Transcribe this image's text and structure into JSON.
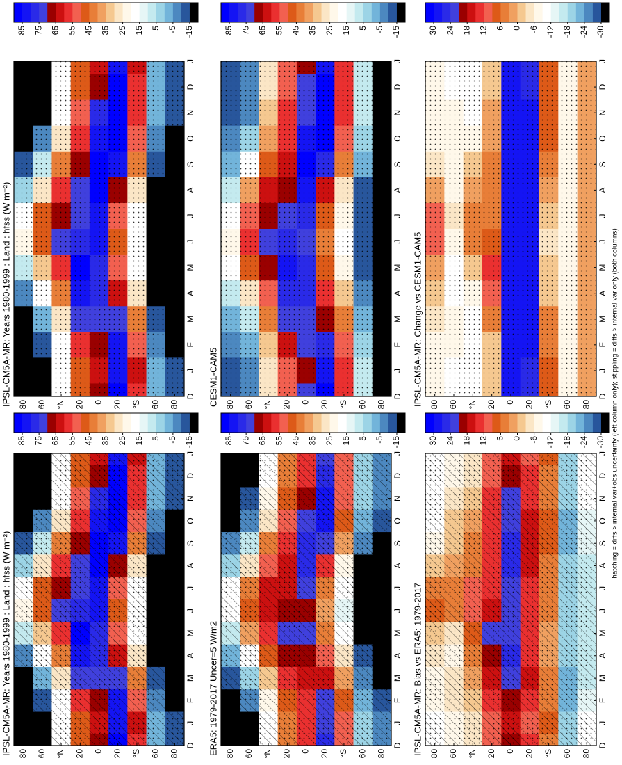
{
  "colormap": [
    "#0000ff",
    "#1414f4",
    "#2a2ae8",
    "#4040dd",
    "#9a0000",
    "#cc1010",
    "#ea3030",
    "#f26050",
    "#dd5a18",
    "#e87e38",
    "#f0a060",
    "#f5c890",
    "#fbe6c6",
    "#fff8ea",
    "#ffffff",
    "#e6f6f6",
    "#c4eaef",
    "#9cd4e6",
    "#72b4da",
    "#4c88c0",
    "#28569c",
    "#000000"
  ],
  "footnote": "hatching = diffs > internal var+obs uncertainty (left column only); stippling = diffs > internal var only (both columns)",
  "chart_data": [
    {
      "type": "heatmap",
      "title": "IPSL-CM5A-MR: Years 1980-1999 : Land : hfss (W m⁻²)",
      "hatching": true,
      "stippling": true,
      "categories": [
        "D",
        "J",
        "F",
        "M",
        "A",
        "M",
        "J",
        "J",
        "A",
        "S",
        "O",
        "N",
        "D",
        "J"
      ],
      "y_categories": [
        "80",
        "60",
        "°N",
        "20",
        "0",
        "20",
        "°S",
        "60",
        "80"
      ],
      "colorbar": {
        "lim": [
          90,
          -20
        ],
        "ticks": [
          85,
          75,
          65,
          55,
          45,
          35,
          25,
          15,
          5,
          -5,
          -15
        ]
      },
      "values": [
        [
          -25,
          -25,
          -22,
          -15,
          -5,
          10,
          25,
          20,
          5,
          -10,
          -20,
          -25,
          -25,
          -25
        ],
        [
          -20,
          -20,
          -10,
          0,
          15,
          35,
          50,
          48,
          30,
          10,
          -5,
          -15,
          -20,
          -20
        ],
        [
          15,
          15,
          20,
          30,
          45,
          60,
          72,
          70,
          60,
          45,
          30,
          20,
          15,
          15
        ],
        [
          50,
          50,
          60,
          75,
          85,
          90,
          80,
          75,
          72,
          68,
          60,
          55,
          50,
          50
        ],
        [
          70,
          65,
          70,
          75,
          80,
          80,
          82,
          85,
          90,
          90,
          85,
          78,
          70,
          65
        ],
        [
          90,
          85,
          82,
          75,
          65,
          55,
          50,
          55,
          70,
          85,
          95,
          95,
          90,
          85
        ],
        [
          60,
          62,
          55,
          45,
          30,
          20,
          15,
          18,
          30,
          45,
          55,
          60,
          60,
          62
        ],
        [
          0,
          0,
          -5,
          -10,
          -15,
          -20,
          -25,
          -25,
          -20,
          -10,
          -5,
          0,
          0,
          0
        ],
        [
          -10,
          -10,
          -15,
          -20,
          -25,
          -25,
          -25,
          -25,
          -25,
          -20,
          -15,
          -10,
          -10,
          -10
        ]
      ]
    },
    {
      "type": "heatmap",
      "title": "IPSL-CM5A-MR: Years 1980-1999 : Land : hfss (W m⁻²)",
      "hatching": false,
      "stippling": true,
      "categories": [
        "D",
        "J",
        "F",
        "M",
        "A",
        "M",
        "J",
        "J",
        "A",
        "S",
        "O",
        "N",
        "D",
        "J"
      ],
      "y_categories": [
        "80",
        "60",
        "°N",
        "20",
        "0",
        "20",
        "°S",
        "60",
        "80"
      ],
      "colorbar": {
        "lim": [
          90,
          -20
        ],
        "ticks": [
          85,
          75,
          65,
          55,
          45,
          35,
          25,
          15,
          5,
          -5,
          -15
        ]
      },
      "values": [
        [
          -25,
          -25,
          -22,
          -15,
          -5,
          10,
          25,
          20,
          5,
          -10,
          -20,
          -25,
          -25,
          -25
        ],
        [
          -20,
          -20,
          -10,
          0,
          15,
          35,
          50,
          48,
          30,
          10,
          -5,
          -15,
          -20,
          -20
        ],
        [
          15,
          15,
          20,
          30,
          45,
          60,
          72,
          70,
          60,
          45,
          30,
          20,
          15,
          15
        ],
        [
          50,
          50,
          60,
          75,
          85,
          90,
          80,
          75,
          72,
          68,
          60,
          55,
          50,
          50
        ],
        [
          70,
          65,
          70,
          75,
          80,
          80,
          82,
          85,
          90,
          90,
          85,
          78,
          70,
          65
        ],
        [
          90,
          85,
          82,
          75,
          65,
          55,
          50,
          55,
          70,
          85,
          95,
          95,
          90,
          85
        ],
        [
          60,
          62,
          55,
          45,
          30,
          20,
          15,
          18,
          30,
          45,
          55,
          60,
          60,
          62
        ],
        [
          0,
          0,
          -5,
          -10,
          -15,
          -20,
          -25,
          -25,
          -20,
          -10,
          -5,
          0,
          0,
          0
        ],
        [
          -10,
          -10,
          -15,
          -20,
          -25,
          -25,
          -25,
          -25,
          -25,
          -20,
          -15,
          -10,
          -10,
          -10
        ]
      ]
    },
    {
      "type": "heatmap",
      "title": "ERA5: 1979-2017 Uncer=5 W/m2",
      "hatching": true,
      "stippling": true,
      "categories": [
        "D",
        "J",
        "F",
        "M",
        "A",
        "M",
        "J",
        "J",
        "A",
        "S",
        "O",
        "N",
        "D",
        "J"
      ],
      "y_categories": [
        "80",
        "60",
        "°N",
        "20",
        "0",
        "20",
        "°S",
        "60",
        "80"
      ],
      "colorbar": {
        "lim": [
          90,
          -20
        ],
        "ticks": [
          85,
          75,
          65,
          55,
          45,
          35,
          25,
          15,
          5,
          -5,
          -15
        ]
      },
      "values": [
        [
          -20,
          -20,
          -18,
          -10,
          0,
          10,
          20,
          18,
          5,
          -5,
          -15,
          -20,
          -20,
          -20
        ],
        [
          -15,
          -15,
          -8,
          5,
          20,
          38,
          48,
          45,
          30,
          10,
          -5,
          -12,
          -15,
          -15
        ],
        [
          20,
          20,
          25,
          35,
          48,
          58,
          65,
          62,
          55,
          42,
          30,
          22,
          20,
          20
        ],
        [
          45,
          45,
          50,
          60,
          70,
          75,
          70,
          65,
          62,
          58,
          52,
          48,
          45,
          45
        ],
        [
          60,
          58,
          60,
          65,
          70,
          72,
          70,
          72,
          78,
          80,
          75,
          68,
          60,
          58
        ],
        [
          80,
          75,
          72,
          65,
          55,
          45,
          40,
          45,
          60,
          75,
          85,
          85,
          80,
          75
        ],
        [
          55,
          55,
          50,
          40,
          28,
          18,
          12,
          15,
          25,
          38,
          48,
          55,
          55,
          55
        ],
        [
          5,
          5,
          0,
          -5,
          -10,
          -15,
          -20,
          -20,
          -15,
          -5,
          0,
          5,
          5,
          5
        ],
        [
          -5,
          -5,
          -10,
          -15,
          -20,
          -20,
          -20,
          -20,
          -20,
          -15,
          -10,
          -5,
          -5,
          -5
        ]
      ]
    },
    {
      "type": "heatmap",
      "title": "CESM1-CAM5",
      "hatching": false,
      "stippling": true,
      "categories": [
        "D",
        "J",
        "F",
        "M",
        "A",
        "M",
        "J",
        "J",
        "A",
        "S",
        "O",
        "N",
        "D",
        "J"
      ],
      "y_categories": [
        "80",
        "60",
        "°N",
        "20",
        "0",
        "20",
        "°S",
        "60",
        "80"
      ],
      "colorbar": {
        "lim": [
          90,
          -20
        ],
        "ticks": [
          85,
          75,
          65,
          55,
          45,
          35,
          25,
          15,
          5,
          -5,
          -15
        ]
      },
      "values": [
        [
          -10,
          -10,
          -8,
          0,
          10,
          18,
          25,
          20,
          10,
          0,
          -5,
          -10,
          -10,
          -10
        ],
        [
          -5,
          -5,
          0,
          10,
          30,
          48,
          60,
          55,
          40,
          20,
          5,
          -5,
          -5,
          -5
        ],
        [
          30,
          30,
          35,
          45,
          55,
          70,
          75,
          70,
          62,
          50,
          38,
          32,
          30,
          30
        ],
        [
          55,
          55,
          62,
          72,
          80,
          82,
          78,
          72,
          70,
          65,
          60,
          58,
          55,
          55
        ],
        [
          72,
          70,
          72,
          75,
          80,
          78,
          75,
          78,
          85,
          88,
          82,
          75,
          72,
          70
        ],
        [
          88,
          85,
          80,
          70,
          60,
          50,
          45,
          50,
          65,
          80,
          90,
          92,
          88,
          85
        ],
        [
          60,
          60,
          55,
          45,
          35,
          25,
          20,
          22,
          30,
          45,
          55,
          60,
          60,
          60
        ],
        [
          10,
          10,
          5,
          0,
          -5,
          -10,
          -12,
          -12,
          -10,
          -2,
          5,
          10,
          10,
          10
        ],
        [
          -15,
          -15,
          -18,
          -20,
          -25,
          -25,
          -25,
          -25,
          -25,
          -20,
          -18,
          -15,
          -15,
          -15
        ]
      ]
    },
    {
      "type": "heatmap",
      "title": "IPSL-CM5A-MR: Bias vs ERA5: 1979-2017",
      "hatching": true,
      "stippling": true,
      "categories": [
        "D",
        "J",
        "F",
        "M",
        "A",
        "M",
        "J",
        "J",
        "A",
        "S",
        "O",
        "N",
        "D",
        "J"
      ],
      "y_categories": [
        "80",
        "60",
        "°N",
        "20",
        "0",
        "20",
        "°S",
        "60",
        "80"
      ],
      "colorbar": {
        "lim": [
          33,
          -33
        ],
        "ticks": [
          30,
          24,
          18,
          12,
          6,
          0,
          -6,
          -12,
          -18,
          -24,
          -30
        ]
      },
      "values": [
        [
          -10,
          -10,
          -8,
          -6,
          -4,
          0,
          8,
          5,
          0,
          -6,
          -10,
          -12,
          -10,
          -10
        ],
        [
          -6,
          -6,
          -3,
          -5,
          -6,
          -3,
          4,
          6,
          2,
          0,
          -2,
          -4,
          -6,
          -6
        ],
        [
          -4,
          -4,
          -2,
          2,
          4,
          8,
          12,
          10,
          6,
          4,
          2,
          0,
          -4,
          -4
        ],
        [
          12,
          12,
          15,
          18,
          20,
          22,
          16,
          14,
          14,
          15,
          14,
          13,
          12,
          12
        ],
        [
          20,
          18,
          20,
          22,
          25,
          24,
          22,
          24,
          26,
          25,
          24,
          22,
          20,
          18
        ],
        [
          14,
          12,
          14,
          16,
          15,
          14,
          14,
          15,
          16,
          18,
          16,
          15,
          14,
          12
        ],
        [
          6,
          8,
          6,
          4,
          2,
          2,
          4,
          4,
          6,
          8,
          8,
          6,
          6,
          8
        ],
        [
          -20,
          -20,
          -22,
          -22,
          -20,
          -18,
          -18,
          -18,
          -20,
          -22,
          -22,
          -20,
          -20,
          -20
        ],
        [
          -12,
          -12,
          -14,
          -15,
          -15,
          -16,
          -16,
          -16,
          -15,
          -14,
          -13,
          -12,
          -12,
          -12
        ]
      ]
    },
    {
      "type": "heatmap",
      "title": "IPSL-CM5A-MR: Change vs CESM1-CAM5",
      "hatching": false,
      "stippling": true,
      "categories": [
        "D",
        "J",
        "F",
        "M",
        "A",
        "M",
        "J",
        "J",
        "A",
        "S",
        "O",
        "N",
        "D",
        "J"
      ],
      "y_categories": [
        "80",
        "60",
        "°N",
        "20",
        "0",
        "20",
        "°S",
        "60",
        "80"
      ],
      "colorbar": {
        "lim": [
          33,
          -33
        ],
        "ticks": [
          30,
          24,
          18,
          12,
          6,
          0,
          -6,
          -12,
          -18,
          -24,
          -30
        ]
      },
      "values": [
        [
          -8,
          -8,
          -6,
          -4,
          -2,
          2,
          12,
          10,
          2,
          -4,
          -6,
          -8,
          -8,
          -8
        ],
        [
          -10,
          -10,
          -8,
          -8,
          -12,
          -10,
          -6,
          -4,
          -6,
          -8,
          -6,
          -8,
          -10,
          -10
        ],
        [
          -12,
          -12,
          -12,
          -10,
          -6,
          -2,
          4,
          6,
          2,
          -2,
          -6,
          -10,
          -12,
          -12
        ],
        [
          0,
          0,
          -2,
          6,
          12,
          14,
          8,
          6,
          4,
          4,
          2,
          2,
          0,
          0
        ],
        [
          30,
          30,
          30,
          30,
          30,
          30,
          30,
          30,
          30,
          30,
          30,
          30,
          30,
          30
        ],
        [
          25,
          25,
          28,
          30,
          30,
          30,
          30,
          30,
          30,
          30,
          30,
          30,
          25,
          25
        ],
        [
          8,
          8,
          6,
          4,
          0,
          -2,
          -4,
          -2,
          2,
          6,
          8,
          8,
          8,
          8
        ],
        [
          -6,
          -6,
          -6,
          -6,
          -6,
          -6,
          -6,
          -6,
          -6,
          -6,
          -6,
          -6,
          -6,
          -6
        ],
        [
          2,
          2,
          2,
          2,
          2,
          2,
          2,
          2,
          2,
          2,
          2,
          2,
          2,
          2
        ]
      ]
    }
  ]
}
